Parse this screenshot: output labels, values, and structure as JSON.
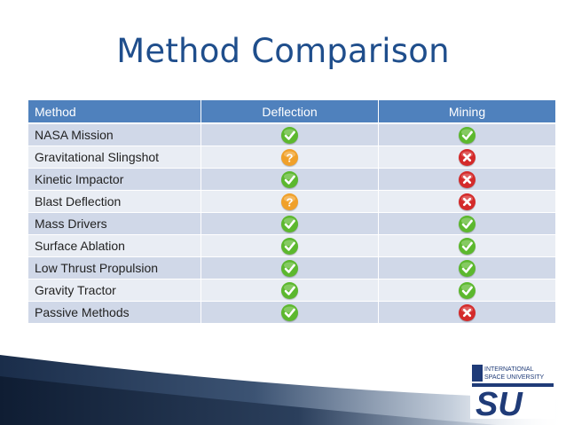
{
  "slide": {
    "title": "Method Comparison"
  },
  "table": {
    "headers": [
      "Method",
      "Deflection",
      "Mining"
    ],
    "rows": [
      {
        "method": "NASA Mission",
        "deflection": "check",
        "mining": "check"
      },
      {
        "method": "Gravitational Slingshot",
        "deflection": "question",
        "mining": "cross"
      },
      {
        "method": "Kinetic Impactor",
        "deflection": "check",
        "mining": "cross"
      },
      {
        "method": "Blast Deflection",
        "deflection": "question",
        "mining": "cross"
      },
      {
        "method": "Mass Drivers",
        "deflection": "check",
        "mining": "check"
      },
      {
        "method": "Surface Ablation",
        "deflection": "check",
        "mining": "check"
      },
      {
        "method": "Low Thrust Propulsion",
        "deflection": "check",
        "mining": "check"
      },
      {
        "method": "Gravity Tractor",
        "deflection": "check",
        "mining": "check"
      },
      {
        "method": "Passive Methods",
        "deflection": "check",
        "mining": "cross"
      }
    ]
  },
  "logo": {
    "line1": "INTERNATIONAL",
    "line2": "SPACE UNIVERSITY",
    "mark": "SU"
  },
  "colors": {
    "title": "#1f4e8c",
    "header_bg": "#4f81bd",
    "row_dark": "#d0d8e8",
    "row_light": "#e9edf4",
    "check": "#5cb82e",
    "question": "#f0a02a",
    "cross": "#d42a2a"
  }
}
